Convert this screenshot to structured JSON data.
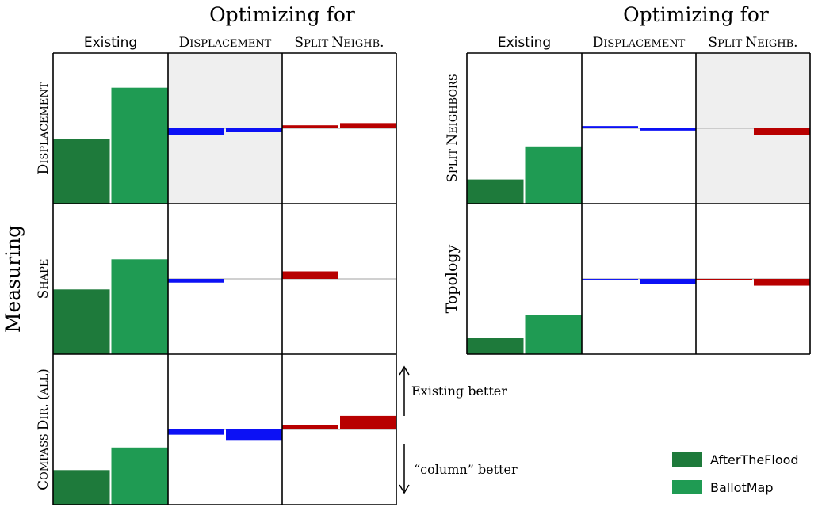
{
  "colors": {
    "afterTheFlood": "#1e7a3b",
    "ballotMap": "#1f9b53",
    "optDisplacement": "#0c11f5",
    "optSplit": "#b80000",
    "highlightBg": "#efefef",
    "baseline": "#c0c0c0"
  },
  "common": {
    "measuring_label": "Measuring",
    "existing_better": "Existing better",
    "column_better": "“column” better"
  },
  "legend": [
    {
      "name": "AfterTheFlood",
      "color": "#1e7a3b"
    },
    {
      "name": "BallotMap",
      "color": "#1f9b53"
    }
  ],
  "chart_data": [
    {
      "type": "bar",
      "title": "Optimizing for",
      "columns": [
        "Existing",
        "Displacement",
        "Split Neighb."
      ],
      "column_styles": [
        "sans",
        "smallcaps",
        "smallcaps"
      ],
      "rows": [
        "Displacement",
        "Shape",
        "Compass Dir. (all)"
      ],
      "row_styles": [
        "smallcaps",
        "smallcaps",
        "smallcaps"
      ],
      "series": [
        "AfterTheFlood",
        "BallotMap"
      ],
      "highlight": [
        [
          0,
          1
        ]
      ],
      "ylim_existing": [
        0,
        100
      ],
      "ylim_diff": [
        -100,
        100
      ],
      "existing": [
        [
          43,
          77
        ],
        [
          43,
          63
        ],
        [
          23,
          38
        ]
      ],
      "optimized": [
        [
          [
            -9,
            -5
          ],
          [
            4,
            7
          ]
        ],
        [
          [
            -5,
            0
          ],
          [
            10,
            0
          ]
        ],
        [
          [
            -7,
            -14
          ],
          [
            6,
            18
          ]
        ]
      ]
    },
    {
      "type": "bar",
      "title": "Optimizing for",
      "columns": [
        "Existing",
        "Displacement",
        "Split Neighb."
      ],
      "column_styles": [
        "sans",
        "smallcaps",
        "smallcaps"
      ],
      "rows": [
        "Split Neighbors",
        "Topology"
      ],
      "row_styles": [
        "smallcaps",
        "normal"
      ],
      "series": [
        "AfterTheFlood",
        "BallotMap"
      ],
      "highlight": [
        [
          0,
          2
        ]
      ],
      "ylim_existing": [
        0,
        100
      ],
      "ylim_diff": [
        -100,
        100
      ],
      "existing": [
        [
          16,
          38
        ],
        [
          11,
          26
        ]
      ],
      "optimized": [
        [
          [
            3,
            -3
          ],
          [
            0,
            -9
          ]
        ],
        [
          [
            -1,
            -7
          ],
          [
            -2,
            -9
          ]
        ]
      ]
    }
  ]
}
